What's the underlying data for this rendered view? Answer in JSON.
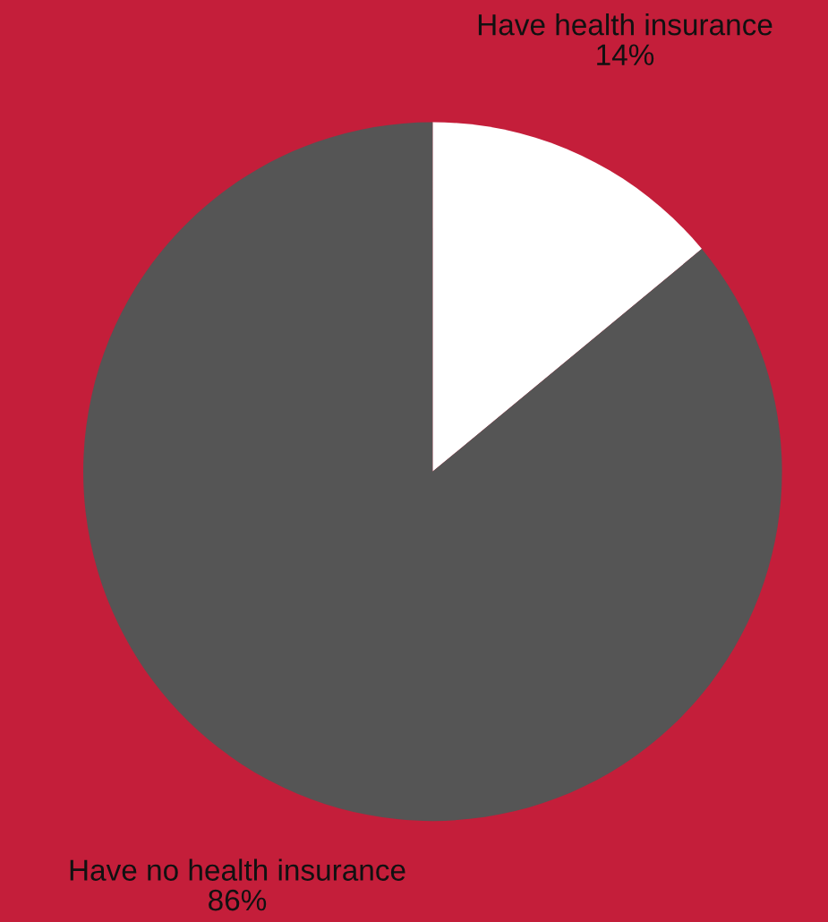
{
  "chart_data": {
    "type": "pie",
    "categories": [
      "Have health insurance",
      "Have no health insurance"
    ],
    "values": [
      14,
      86
    ],
    "colors": [
      "#ffffff",
      "#555555"
    ],
    "value_labels": [
      "14%",
      "86%"
    ]
  }
}
